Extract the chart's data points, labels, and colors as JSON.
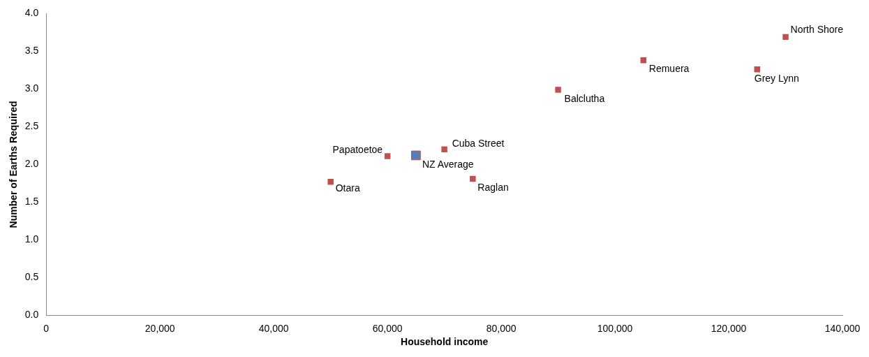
{
  "chart_data": {
    "type": "scatter",
    "xlabel": "Household income",
    "ylabel": "Number of Earths Required",
    "marker": "square",
    "grid": false,
    "legend": false,
    "xlim": [
      0,
      140000
    ],
    "ylim": [
      0,
      4
    ],
    "xticks": [
      {
        "value": 0,
        "label": "0"
      },
      {
        "value": 20000,
        "label": "20,000"
      },
      {
        "value": 40000,
        "label": "40,000"
      },
      {
        "value": 60000,
        "label": "60,000"
      },
      {
        "value": 80000,
        "label": "80,000"
      },
      {
        "value": 100000,
        "label": "100,000"
      },
      {
        "value": 120000,
        "label": "120,000"
      },
      {
        "value": 140000,
        "label": "140,000"
      }
    ],
    "yticks": [
      {
        "value": 0,
        "label": "0.0"
      },
      {
        "value": 0.5,
        "label": "0.5"
      },
      {
        "value": 1,
        "label": "1.0"
      },
      {
        "value": 1.5,
        "label": "1.5"
      },
      {
        "value": 2,
        "label": "2.0"
      },
      {
        "value": 2.5,
        "label": "2.5"
      },
      {
        "value": 3,
        "label": "3.0"
      },
      {
        "value": 3.5,
        "label": "3.5"
      },
      {
        "value": 4,
        "label": "4.0"
      }
    ],
    "series": [
      {
        "color": "#c0504d",
        "x": [
          50000,
          60000,
          70000,
          75000,
          90000,
          105000,
          125000,
          130000
        ],
        "values": [
          1.77,
          2.11,
          2.2,
          1.81,
          2.99,
          3.38,
          3.26,
          3.69
        ]
      },
      {
        "color": "#4f81bd",
        "x": [
          65000
        ],
        "values": [
          2.12
        ]
      }
    ],
    "annotations": [
      {
        "text": "Otara",
        "x": 50000,
        "y": 1.77
      },
      {
        "text": "Papatoetoe",
        "x": 60000,
        "y": 2.11
      },
      {
        "text": "NZ Average",
        "x": 65000,
        "y": 2.12
      },
      {
        "text": "Cuba Street",
        "x": 70000,
        "y": 2.2
      },
      {
        "text": "Raglan",
        "x": 75000,
        "y": 1.81
      },
      {
        "text": "Balclutha",
        "x": 90000,
        "y": 2.99
      },
      {
        "text": "Remuera",
        "x": 105000,
        "y": 3.38
      },
      {
        "text": "Grey Lynn",
        "x": 125000,
        "y": 3.26
      },
      {
        "text": "North Shore",
        "x": 130000,
        "y": 3.69
      }
    ]
  }
}
